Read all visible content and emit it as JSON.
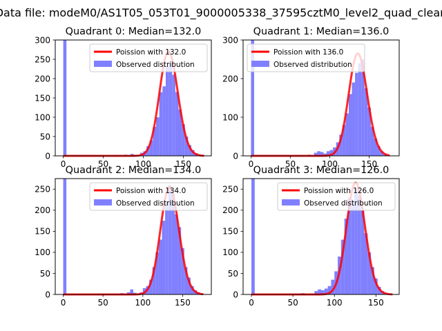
{
  "figure": {
    "suptitle": "Data file: modeM0/AS1T05_053T01_9000005338_37595cztM0_level2_quad_clean"
  },
  "colors": {
    "histogram": "#8080ff",
    "poisson": "#ff0000",
    "axis": "#000000"
  },
  "chart_data": [
    {
      "type": "bar",
      "title": "Quadrant 0: Median=132.0",
      "xlim": [
        -10,
        185
      ],
      "ylim": [
        0,
        300
      ],
      "xticks": [
        0,
        50,
        100,
        150
      ],
      "yticks": [
        0,
        50,
        100,
        150,
        200,
        250,
        300
      ],
      "legend": {
        "position": "top-right",
        "entries": [
          "Poission with 132.0",
          "Observed distribution"
        ]
      },
      "histogram": {
        "name": "Observed distribution",
        "bin_width": 4,
        "bins": [
          {
            "x": 0,
            "y": 300
          },
          {
            "x": 64,
            "y": 2
          },
          {
            "x": 76,
            "y": 3
          },
          {
            "x": 84,
            "y": 5
          },
          {
            "x": 88,
            "y": 2
          },
          {
            "x": 96,
            "y": 8
          },
          {
            "x": 100,
            "y": 12
          },
          {
            "x": 104,
            "y": 25
          },
          {
            "x": 108,
            "y": 40
          },
          {
            "x": 112,
            "y": 75
          },
          {
            "x": 116,
            "y": 100
          },
          {
            "x": 120,
            "y": 165
          },
          {
            "x": 124,
            "y": 180
          },
          {
            "x": 128,
            "y": 232
          },
          {
            "x": 132,
            "y": 240
          },
          {
            "x": 136,
            "y": 210
          },
          {
            "x": 140,
            "y": 165
          },
          {
            "x": 144,
            "y": 120
          },
          {
            "x": 148,
            "y": 82
          },
          {
            "x": 152,
            "y": 50
          },
          {
            "x": 156,
            "y": 28
          },
          {
            "x": 160,
            "y": 15
          },
          {
            "x": 164,
            "y": 7
          },
          {
            "x": 168,
            "y": 4
          },
          {
            "x": 172,
            "y": 2
          }
        ]
      },
      "poisson": {
        "name": "Poission with 132.0",
        "lambda": 132.0,
        "scale": 270,
        "x_range": [
          0,
          176
        ]
      }
    },
    {
      "type": "bar",
      "title": "Quadrant 1: Median=136.0",
      "xlim": [
        -10,
        188
      ],
      "ylim": [
        0,
        300
      ],
      "xticks": [
        0,
        50,
        100,
        150
      ],
      "yticks": [
        0,
        100,
        200,
        300
      ],
      "legend": {
        "position": "top-left",
        "entries": [
          "Poission with 136.0",
          "Observed distribution"
        ]
      },
      "histogram": {
        "name": "Observed distribution",
        "bin_width": 4,
        "bins": [
          {
            "x": 0,
            "y": 300
          },
          {
            "x": 72,
            "y": 3
          },
          {
            "x": 80,
            "y": 8
          },
          {
            "x": 84,
            "y": 12
          },
          {
            "x": 88,
            "y": 10
          },
          {
            "x": 92,
            "y": 6
          },
          {
            "x": 96,
            "y": 12
          },
          {
            "x": 100,
            "y": 15
          },
          {
            "x": 104,
            "y": 22
          },
          {
            "x": 108,
            "y": 35
          },
          {
            "x": 112,
            "y": 55
          },
          {
            "x": 116,
            "y": 80
          },
          {
            "x": 120,
            "y": 110
          },
          {
            "x": 124,
            "y": 160
          },
          {
            "x": 128,
            "y": 190
          },
          {
            "x": 132,
            "y": 215
          },
          {
            "x": 136,
            "y": 240
          },
          {
            "x": 140,
            "y": 250
          },
          {
            "x": 144,
            "y": 175
          },
          {
            "x": 148,
            "y": 125
          },
          {
            "x": 152,
            "y": 75
          },
          {
            "x": 156,
            "y": 45
          },
          {
            "x": 160,
            "y": 25
          },
          {
            "x": 164,
            "y": 12
          },
          {
            "x": 168,
            "y": 5
          }
        ]
      },
      "poisson": {
        "name": "Poission with 136.0",
        "lambda": 136.0,
        "scale": 265,
        "x_range": [
          0,
          176
        ]
      }
    },
    {
      "type": "bar",
      "title": "Quadrant 2: Median=134.0",
      "xlim": [
        -10,
        186
      ],
      "ylim": [
        0,
        275
      ],
      "xticks": [
        0,
        50,
        100,
        150
      ],
      "yticks": [
        0,
        50,
        100,
        150,
        200,
        250
      ],
      "legend": {
        "position": "top-right",
        "entries": [
          "Poission with 134.0",
          "Observed distribution"
        ]
      },
      "histogram": {
        "name": "Observed distribution",
        "bin_width": 4,
        "bins": [
          {
            "x": 0,
            "y": 275
          },
          {
            "x": 72,
            "y": 3
          },
          {
            "x": 80,
            "y": 5
          },
          {
            "x": 84,
            "y": 12
          },
          {
            "x": 88,
            "y": 4
          },
          {
            "x": 96,
            "y": 5
          },
          {
            "x": 100,
            "y": 15
          },
          {
            "x": 104,
            "y": 20
          },
          {
            "x": 108,
            "y": 35
          },
          {
            "x": 112,
            "y": 65
          },
          {
            "x": 116,
            "y": 100
          },
          {
            "x": 120,
            "y": 130
          },
          {
            "x": 124,
            "y": 175
          },
          {
            "x": 128,
            "y": 220
          },
          {
            "x": 132,
            "y": 260
          },
          {
            "x": 136,
            "y": 240
          },
          {
            "x": 140,
            "y": 190
          },
          {
            "x": 144,
            "y": 160
          },
          {
            "x": 148,
            "y": 110
          },
          {
            "x": 152,
            "y": 65
          },
          {
            "x": 156,
            "y": 40
          },
          {
            "x": 160,
            "y": 20
          },
          {
            "x": 164,
            "y": 10
          },
          {
            "x": 168,
            "y": 5
          },
          {
            "x": 172,
            "y": 2
          }
        ]
      },
      "poisson": {
        "name": "Poission with 134.0",
        "lambda": 134.0,
        "scale": 255,
        "x_range": [
          0,
          176
        ]
      }
    },
    {
      "type": "bar",
      "title": "Quadrant 3: Median=126.0",
      "xlim": [
        -10,
        178
      ],
      "ylim": [
        0,
        275
      ],
      "xticks": [
        0,
        50,
        100,
        150
      ],
      "yticks": [
        0,
        50,
        100,
        150,
        200,
        250
      ],
      "legend": {
        "position": "top-right",
        "entries": [
          "Poission with 126.0",
          "Observed distribution"
        ]
      },
      "histogram": {
        "name": "Observed distribution",
        "bin_width": 4,
        "bins": [
          {
            "x": 0,
            "y": 275
          },
          {
            "x": 60,
            "y": 3
          },
          {
            "x": 76,
            "y": 8
          },
          {
            "x": 80,
            "y": 12
          },
          {
            "x": 84,
            "y": 10
          },
          {
            "x": 88,
            "y": 14
          },
          {
            "x": 92,
            "y": 20
          },
          {
            "x": 96,
            "y": 35
          },
          {
            "x": 100,
            "y": 55
          },
          {
            "x": 104,
            "y": 90
          },
          {
            "x": 108,
            "y": 130
          },
          {
            "x": 112,
            "y": 180
          },
          {
            "x": 116,
            "y": 230
          },
          {
            "x": 120,
            "y": 225
          },
          {
            "x": 124,
            "y": 250
          },
          {
            "x": 128,
            "y": 235
          },
          {
            "x": 132,
            "y": 200
          },
          {
            "x": 136,
            "y": 145
          },
          {
            "x": 140,
            "y": 100
          },
          {
            "x": 144,
            "y": 65
          },
          {
            "x": 148,
            "y": 38
          },
          {
            "x": 152,
            "y": 18
          },
          {
            "x": 156,
            "y": 8
          },
          {
            "x": 160,
            "y": 4
          }
        ]
      },
      "poisson": {
        "name": "Poission with 126.0",
        "lambda": 126.0,
        "scale": 265,
        "x_range": [
          0,
          170
        ]
      }
    }
  ]
}
